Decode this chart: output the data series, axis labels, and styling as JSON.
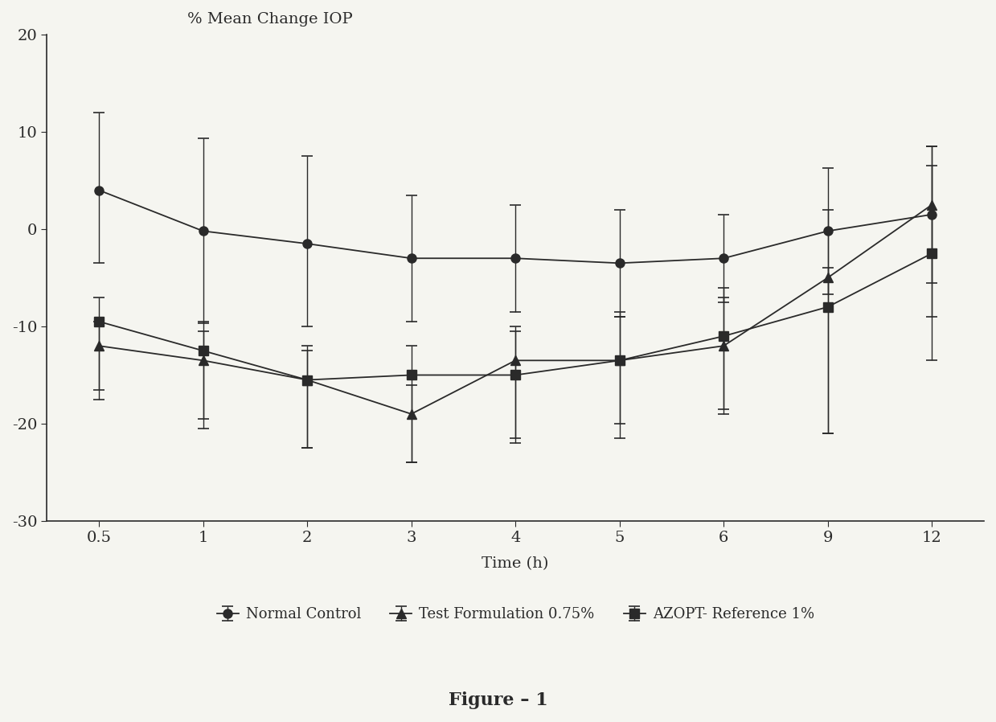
{
  "title": "% Mean Change IOP",
  "xlabel": "Time (h)",
  "figure_label": "Figure – 1",
  "x_labels": [
    "0.5",
    "1",
    "2",
    "3",
    "4",
    "5",
    "6",
    "9",
    "12"
  ],
  "normal_control": {
    "y": [
      4.0,
      -0.2,
      -1.5,
      -3.0,
      -3.0,
      -3.5,
      -3.0,
      -0.2,
      1.5
    ],
    "yerr_upper": [
      8.0,
      9.5,
      9.0,
      6.5,
      5.5,
      5.5,
      4.5,
      6.5,
      7.0
    ],
    "yerr_lower": [
      7.5,
      9.5,
      8.5,
      6.5,
      5.5,
      5.5,
      4.5,
      6.5,
      7.0
    ],
    "label": "Normal Control",
    "marker": "o"
  },
  "test_formulation": {
    "y": [
      -12.0,
      -13.5,
      -15.5,
      -19.0,
      -13.5,
      -13.5,
      -12.0,
      -5.0,
      2.5
    ],
    "yerr_upper": [
      2.5,
      3.0,
      3.0,
      3.0,
      3.0,
      5.0,
      5.0,
      7.0,
      6.0
    ],
    "yerr_lower": [
      5.5,
      7.0,
      7.0,
      5.0,
      8.0,
      6.5,
      7.0,
      16.0,
      11.5
    ],
    "label": "Test Formulation 0.75%",
    "marker": "^"
  },
  "azopt_reference": {
    "y": [
      -9.5,
      -12.5,
      -15.5,
      -15.0,
      -15.0,
      -13.5,
      -11.0,
      -8.0,
      -2.5
    ],
    "yerr_upper": [
      2.5,
      3.0,
      3.5,
      3.0,
      5.0,
      4.5,
      5.0,
      4.0,
      9.0
    ],
    "yerr_lower": [
      7.0,
      7.0,
      7.0,
      9.0,
      7.0,
      8.0,
      7.5,
      13.0,
      11.0
    ],
    "label": "AZOPT- Reference 1%",
    "marker": "s"
  },
  "ylim": [
    -30,
    20
  ],
  "yticks": [
    -30,
    -20,
    -10,
    0,
    10,
    20
  ],
  "background_color": "#f5f5f0",
  "line_color": "#2a2a2a",
  "font_color": "#2a2a2a",
  "title_fontsize": 14,
  "tick_fontsize": 14,
  "label_fontsize": 14,
  "legend_fontsize": 13,
  "figure_label_fontsize": 16
}
